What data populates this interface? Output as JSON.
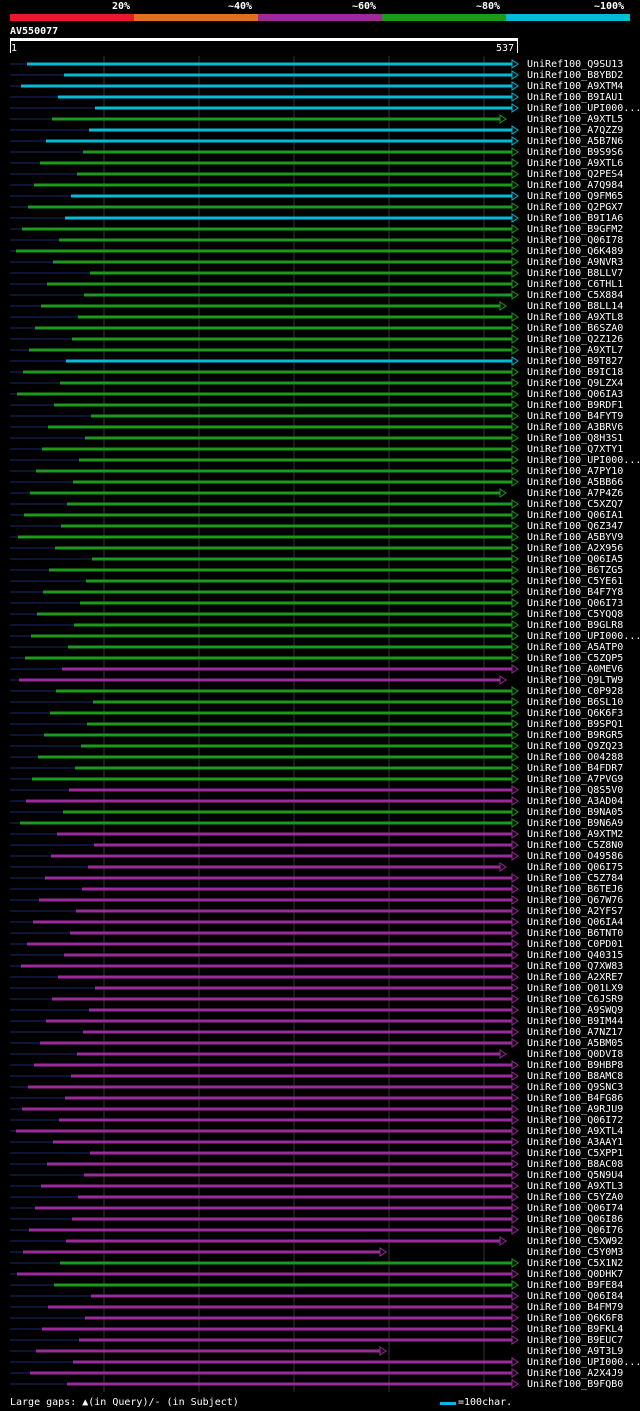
{
  "legend": {
    "labels": [
      "20%",
      "~40%",
      "~60%",
      "~80%",
      "~100%"
    ],
    "colors": [
      "#e8192c",
      "#e07020",
      "#9b2a9b",
      "#1c9a1c",
      "#00bcd4"
    ]
  },
  "query": {
    "id": "AV550077",
    "start": "1",
    "end": "537"
  },
  "footer": {
    "gaps_text": "Large gaps: ▲(in Query)/- (in Subject)",
    "scale_text": "=100char."
  },
  "hits": [
    {
      "id": "UniRef100_Q9SU13",
      "c": 4
    },
    {
      "id": "UniRef100_B8YBD2",
      "c": 4
    },
    {
      "id": "UniRef100_A9XTM4",
      "c": 4
    },
    {
      "id": "UniRef100_B9IAU1",
      "c": 4
    },
    {
      "id": "UniRef100_UPI000...",
      "c": 4
    },
    {
      "id": "UniRef100_A9XTL5",
      "c": 3
    },
    {
      "id": "UniRef100_A7QZZ9",
      "c": 4
    },
    {
      "id": "UniRef100_A5B7N6",
      "c": 4
    },
    {
      "id": "UniRef100_B9S9S6",
      "c": 3
    },
    {
      "id": "UniRef100_A9XTL6",
      "c": 3
    },
    {
      "id": "UniRef100_Q2PES4",
      "c": 3
    },
    {
      "id": "UniRef100_A7Q984",
      "c": 3
    },
    {
      "id": "UniRef100_Q9FM65",
      "c": 4
    },
    {
      "id": "UniRef100_Q2PGX7",
      "c": 3
    },
    {
      "id": "UniRef100_B9I1A6",
      "c": 4
    },
    {
      "id": "UniRef100_B9GFM2",
      "c": 3
    },
    {
      "id": "UniRef100_Q06I78",
      "c": 3
    },
    {
      "id": "UniRef100_Q6K489",
      "c": 3
    },
    {
      "id": "UniRef100_A9NVR3",
      "c": 3
    },
    {
      "id": "UniRef100_B8LLV7",
      "c": 3
    },
    {
      "id": "UniRef100_C6THL1",
      "c": 3
    },
    {
      "id": "UniRef100_C5X884",
      "c": 3
    },
    {
      "id": "UniRef100_B8LL14",
      "c": 3
    },
    {
      "id": "UniRef100_A9XTL8",
      "c": 3
    },
    {
      "id": "UniRef100_B6SZA0",
      "c": 3
    },
    {
      "id": "UniRef100_Q2Z126",
      "c": 3
    },
    {
      "id": "UniRef100_A9XTL7",
      "c": 3
    },
    {
      "id": "UniRef100_B9T827",
      "c": 4
    },
    {
      "id": "UniRef100_B9IC18",
      "c": 3
    },
    {
      "id": "UniRef100_Q9LZX4",
      "c": 3
    },
    {
      "id": "UniRef100_Q06IA3",
      "c": 3
    },
    {
      "id": "UniRef100_B9RDF1",
      "c": 3
    },
    {
      "id": "UniRef100_B4FYT9",
      "c": 3
    },
    {
      "id": "UniRef100_A3BRV6",
      "c": 3
    },
    {
      "id": "UniRef100_Q8H3S1",
      "c": 3
    },
    {
      "id": "UniRef100_Q7XTY1",
      "c": 3
    },
    {
      "id": "UniRef100_UPI000...",
      "c": 3
    },
    {
      "id": "UniRef100_A7PY10",
      "c": 3
    },
    {
      "id": "UniRef100_A5BB66",
      "c": 3
    },
    {
      "id": "UniRef100_A7P4Z6",
      "c": 3
    },
    {
      "id": "UniRef100_C5XZQ7",
      "c": 3
    },
    {
      "id": "UniRef100_Q06IA1",
      "c": 3
    },
    {
      "id": "UniRef100_Q6Z347",
      "c": 3
    },
    {
      "id": "UniRef100_A5BYV9",
      "c": 3
    },
    {
      "id": "UniRef100_A2X956",
      "c": 3
    },
    {
      "id": "UniRef100_Q06IA5",
      "c": 3
    },
    {
      "id": "UniRef100_B6TZG5",
      "c": 3
    },
    {
      "id": "UniRef100_C5YE61",
      "c": 3
    },
    {
      "id": "UniRef100_B4F7Y8",
      "c": 3
    },
    {
      "id": "UniRef100_Q06I73",
      "c": 3
    },
    {
      "id": "UniRef100_C5YQQ8",
      "c": 3
    },
    {
      "id": "UniRef100_B9GLR8",
      "c": 3
    },
    {
      "id": "UniRef100_UPI000...",
      "c": 3
    },
    {
      "id": "UniRef100_A5ATP0",
      "c": 3
    },
    {
      "id": "UniRef100_C5ZQP5",
      "c": 3
    },
    {
      "id": "UniRef100_A0MEV6",
      "c": 2
    },
    {
      "id": "UniRef100_Q9LTW9",
      "c": 2
    },
    {
      "id": "UniRef100_C0P928",
      "c": 3
    },
    {
      "id": "UniRef100_B6SL10",
      "c": 3
    },
    {
      "id": "UniRef100_Q6K6F3",
      "c": 3
    },
    {
      "id": "UniRef100_B9SPQ1",
      "c": 3
    },
    {
      "id": "UniRef100_B9RGR5",
      "c": 3
    },
    {
      "id": "UniRef100_Q9ZQ23",
      "c": 3
    },
    {
      "id": "UniRef100_O04288",
      "c": 3
    },
    {
      "id": "UniRef100_B4FDR7",
      "c": 3
    },
    {
      "id": "UniRef100_A7PVG9",
      "c": 3
    },
    {
      "id": "UniRef100_Q8S5V0",
      "c": 2
    },
    {
      "id": "UniRef100_A3AD04",
      "c": 2
    },
    {
      "id": "UniRef100_B9NA05",
      "c": 3
    },
    {
      "id": "UniRef100_B9N6A9",
      "c": 3
    },
    {
      "id": "UniRef100_A9XTM2",
      "c": 2
    },
    {
      "id": "UniRef100_C5Z8N0",
      "c": 2
    },
    {
      "id": "UniRef100_O49586",
      "c": 2
    },
    {
      "id": "UniRef100_Q06I75",
      "c": 2
    },
    {
      "id": "UniRef100_C5Z784",
      "c": 2
    },
    {
      "id": "UniRef100_B6TEJ6",
      "c": 2
    },
    {
      "id": "UniRef100_Q67W76",
      "c": 2
    },
    {
      "id": "UniRef100_A2YFS7",
      "c": 2
    },
    {
      "id": "UniRef100_Q06IA4",
      "c": 2
    },
    {
      "id": "UniRef100_B6TNT0",
      "c": 2
    },
    {
      "id": "UniRef100_C0PD01",
      "c": 2
    },
    {
      "id": "UniRef100_Q40315",
      "c": 2
    },
    {
      "id": "UniRef100_Q7XW83",
      "c": 2
    },
    {
      "id": "UniRef100_A2XRE7",
      "c": 2
    },
    {
      "id": "UniRef100_Q01LX9",
      "c": 2
    },
    {
      "id": "UniRef100_C6JSR9",
      "c": 2
    },
    {
      "id": "UniRef100_A9SWQ9",
      "c": 2
    },
    {
      "id": "UniRef100_B9IM44",
      "c": 2
    },
    {
      "id": "UniRef100_A7NZ17",
      "c": 2
    },
    {
      "id": "UniRef100_A5BM05",
      "c": 2
    },
    {
      "id": "UniRef100_Q0DVI8",
      "c": 2
    },
    {
      "id": "UniRef100_B9HBP8",
      "c": 2
    },
    {
      "id": "UniRef100_B8AMC8",
      "c": 2
    },
    {
      "id": "UniRef100_Q9SNC3",
      "c": 2
    },
    {
      "id": "UniRef100_B4FG86",
      "c": 2
    },
    {
      "id": "UniRef100_A9RJU9",
      "c": 2
    },
    {
      "id": "UniRef100_Q06I72",
      "c": 2
    },
    {
      "id": "UniRef100_A9XTL4",
      "c": 2
    },
    {
      "id": "UniRef100_A3AAY1",
      "c": 2
    },
    {
      "id": "UniRef100_C5XPP1",
      "c": 2
    },
    {
      "id": "UniRef100_B8AC08",
      "c": 2
    },
    {
      "id": "UniRef100_Q5N9U4",
      "c": 2
    },
    {
      "id": "UniRef100_A9XTL3",
      "c": 2
    },
    {
      "id": "UniRef100_C5YZA0",
      "c": 2
    },
    {
      "id": "UniRef100_Q06I74",
      "c": 2
    },
    {
      "id": "UniRef100_Q06I86",
      "c": 2
    },
    {
      "id": "UniRef100_Q06I76",
      "c": 2
    },
    {
      "id": "UniRef100_C5XW92",
      "c": 2
    },
    {
      "id": "UniRef100_C5Y0M3",
      "c": 2
    },
    {
      "id": "UniRef100_C5X1N2",
      "c": 3
    },
    {
      "id": "UniRef100_Q0DHK7",
      "c": 2
    },
    {
      "id": "UniRef100_B9FE84",
      "c": 3
    },
    {
      "id": "UniRef100_Q06I84",
      "c": 2
    },
    {
      "id": "UniRef100_B4FM79",
      "c": 2
    },
    {
      "id": "UniRef100_Q6K6F8",
      "c": 2
    },
    {
      "id": "UniRef100_B9FKL4",
      "c": 2
    },
    {
      "id": "UniRef100_B9EUC7",
      "c": 2
    },
    {
      "id": "UniRef100_A9T3L9",
      "c": 2
    },
    {
      "id": "UniRef100_UPI000...",
      "c": 2
    },
    {
      "id": "UniRef100_A2X4J9",
      "c": 2
    },
    {
      "id": "UniRef100_B9FQB0",
      "c": 2
    }
  ]
}
